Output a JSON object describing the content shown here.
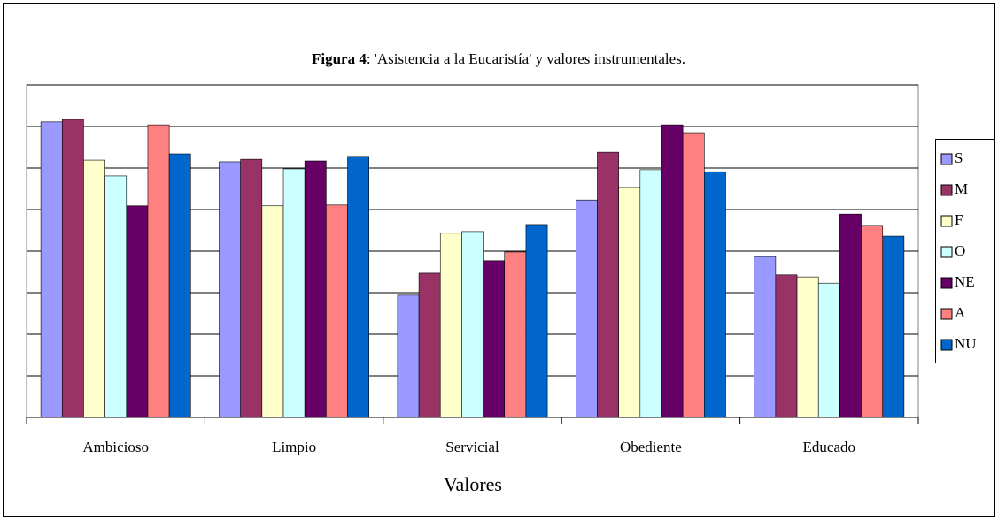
{
  "chart_data": {
    "type": "bar",
    "title_label": "Figura 4",
    "title": ": 'Asistencia a la Eucaristía' y valores instrumentales.",
    "x_label": "Valores",
    "categories": [
      "Ambicioso",
      "Limpio",
      "Servicial",
      "Obediente",
      "Educado"
    ],
    "series": [
      {
        "name": "S",
        "color": "#9999ff",
        "values": [
          7.11,
          6.15,
          2.94,
          5.23,
          3.87
        ]
      },
      {
        "name": "M",
        "color": "#993366",
        "values": [
          7.17,
          6.21,
          3.47,
          6.38,
          3.43
        ]
      },
      {
        "name": "F",
        "color": "#ffffcc",
        "values": [
          6.19,
          5.09,
          4.43,
          5.53,
          3.38
        ]
      },
      {
        "name": "O",
        "color": "#ccffff",
        "values": [
          5.81,
          5.98,
          4.47,
          5.96,
          3.23
        ]
      },
      {
        "name": "NE",
        "color": "#660066",
        "values": [
          5.09,
          6.17,
          3.77,
          7.04,
          4.89
        ]
      },
      {
        "name": "A",
        "color": "#ff8080",
        "values": [
          7.04,
          5.11,
          3.98,
          6.85,
          4.62
        ]
      },
      {
        "name": "NU",
        "color": "#0066cc",
        "values": [
          6.34,
          6.28,
          4.64,
          5.91,
          4.36
        ]
      }
    ],
    "ylim": [
      0,
      8
    ],
    "yticks": [
      0,
      1,
      2,
      3,
      4,
      5,
      6,
      7,
      8
    ],
    "grid": true,
    "legend": "right"
  }
}
